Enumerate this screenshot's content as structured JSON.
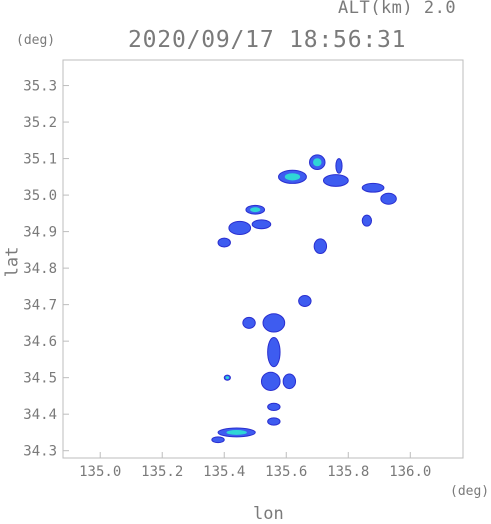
{
  "header": {
    "altitude_label": "ALT(km) 2.0",
    "timestamp": "2020/09/17 18:56:31",
    "y_unit": "(deg)",
    "x_unit": "(deg)"
  },
  "axes": {
    "xlabel": "lon",
    "ylabel": "lat",
    "x_ticks": [
      "135.0",
      "135.2",
      "135.4",
      "135.6",
      "135.8",
      "136.0"
    ],
    "y_ticks": [
      "34.3",
      "34.4",
      "34.5",
      "34.6",
      "34.7",
      "34.8",
      "34.9",
      "35.0",
      "35.1",
      "35.2",
      "35.3"
    ],
    "xlim": [
      134.88,
      136.17
    ],
    "ylim": [
      34.28,
      35.37
    ]
  },
  "colors": {
    "frame": "#bdbdbd",
    "echo_main": "#3e5cf0",
    "echo_strong": "#2fd6d6",
    "echo_edge": "#2a2fd0"
  },
  "echo_cells": [
    {
      "lon": 135.62,
      "lat": 35.05,
      "rx": 0.045,
      "ry": 0.018,
      "level": "strong"
    },
    {
      "lon": 135.7,
      "lat": 35.09,
      "rx": 0.025,
      "ry": 0.02,
      "level": "strong"
    },
    {
      "lon": 135.76,
      "lat": 35.04,
      "rx": 0.04,
      "ry": 0.016,
      "level": "main"
    },
    {
      "lon": 135.88,
      "lat": 35.02,
      "rx": 0.035,
      "ry": 0.012,
      "level": "main"
    },
    {
      "lon": 135.93,
      "lat": 34.99,
      "rx": 0.025,
      "ry": 0.015,
      "level": "main"
    },
    {
      "lon": 135.5,
      "lat": 34.96,
      "rx": 0.03,
      "ry": 0.012,
      "level": "strong"
    },
    {
      "lon": 135.45,
      "lat": 34.91,
      "rx": 0.035,
      "ry": 0.018,
      "level": "main"
    },
    {
      "lon": 135.4,
      "lat": 34.87,
      "rx": 0.02,
      "ry": 0.012,
      "level": "main"
    },
    {
      "lon": 135.52,
      "lat": 34.92,
      "rx": 0.03,
      "ry": 0.012,
      "level": "main"
    },
    {
      "lon": 135.56,
      "lat": 34.65,
      "rx": 0.035,
      "ry": 0.025,
      "level": "main"
    },
    {
      "lon": 135.56,
      "lat": 34.57,
      "rx": 0.02,
      "ry": 0.04,
      "level": "main"
    },
    {
      "lon": 135.55,
      "lat": 34.49,
      "rx": 0.03,
      "ry": 0.025,
      "level": "main"
    },
    {
      "lon": 135.61,
      "lat": 34.49,
      "rx": 0.02,
      "ry": 0.02,
      "level": "main"
    },
    {
      "lon": 135.56,
      "lat": 34.42,
      "rx": 0.02,
      "ry": 0.01,
      "level": "main"
    },
    {
      "lon": 135.56,
      "lat": 34.38,
      "rx": 0.02,
      "ry": 0.01,
      "level": "main"
    },
    {
      "lon": 135.44,
      "lat": 34.35,
      "rx": 0.06,
      "ry": 0.012,
      "level": "strong"
    },
    {
      "lon": 135.41,
      "lat": 34.5,
      "rx": 0.01,
      "ry": 0.007,
      "level": "strong"
    },
    {
      "lon": 135.38,
      "lat": 34.33,
      "rx": 0.02,
      "ry": 0.008,
      "level": "main"
    },
    {
      "lon": 135.71,
      "lat": 34.86,
      "rx": 0.02,
      "ry": 0.02,
      "level": "main"
    },
    {
      "lon": 135.86,
      "lat": 34.93,
      "rx": 0.015,
      "ry": 0.015,
      "level": "main"
    },
    {
      "lon": 135.77,
      "lat": 35.08,
      "rx": 0.01,
      "ry": 0.02,
      "level": "main"
    },
    {
      "lon": 135.66,
      "lat": 34.71,
      "rx": 0.02,
      "ry": 0.015,
      "level": "main"
    },
    {
      "lon": 135.48,
      "lat": 34.65,
      "rx": 0.02,
      "ry": 0.015,
      "level": "main"
    }
  ]
}
